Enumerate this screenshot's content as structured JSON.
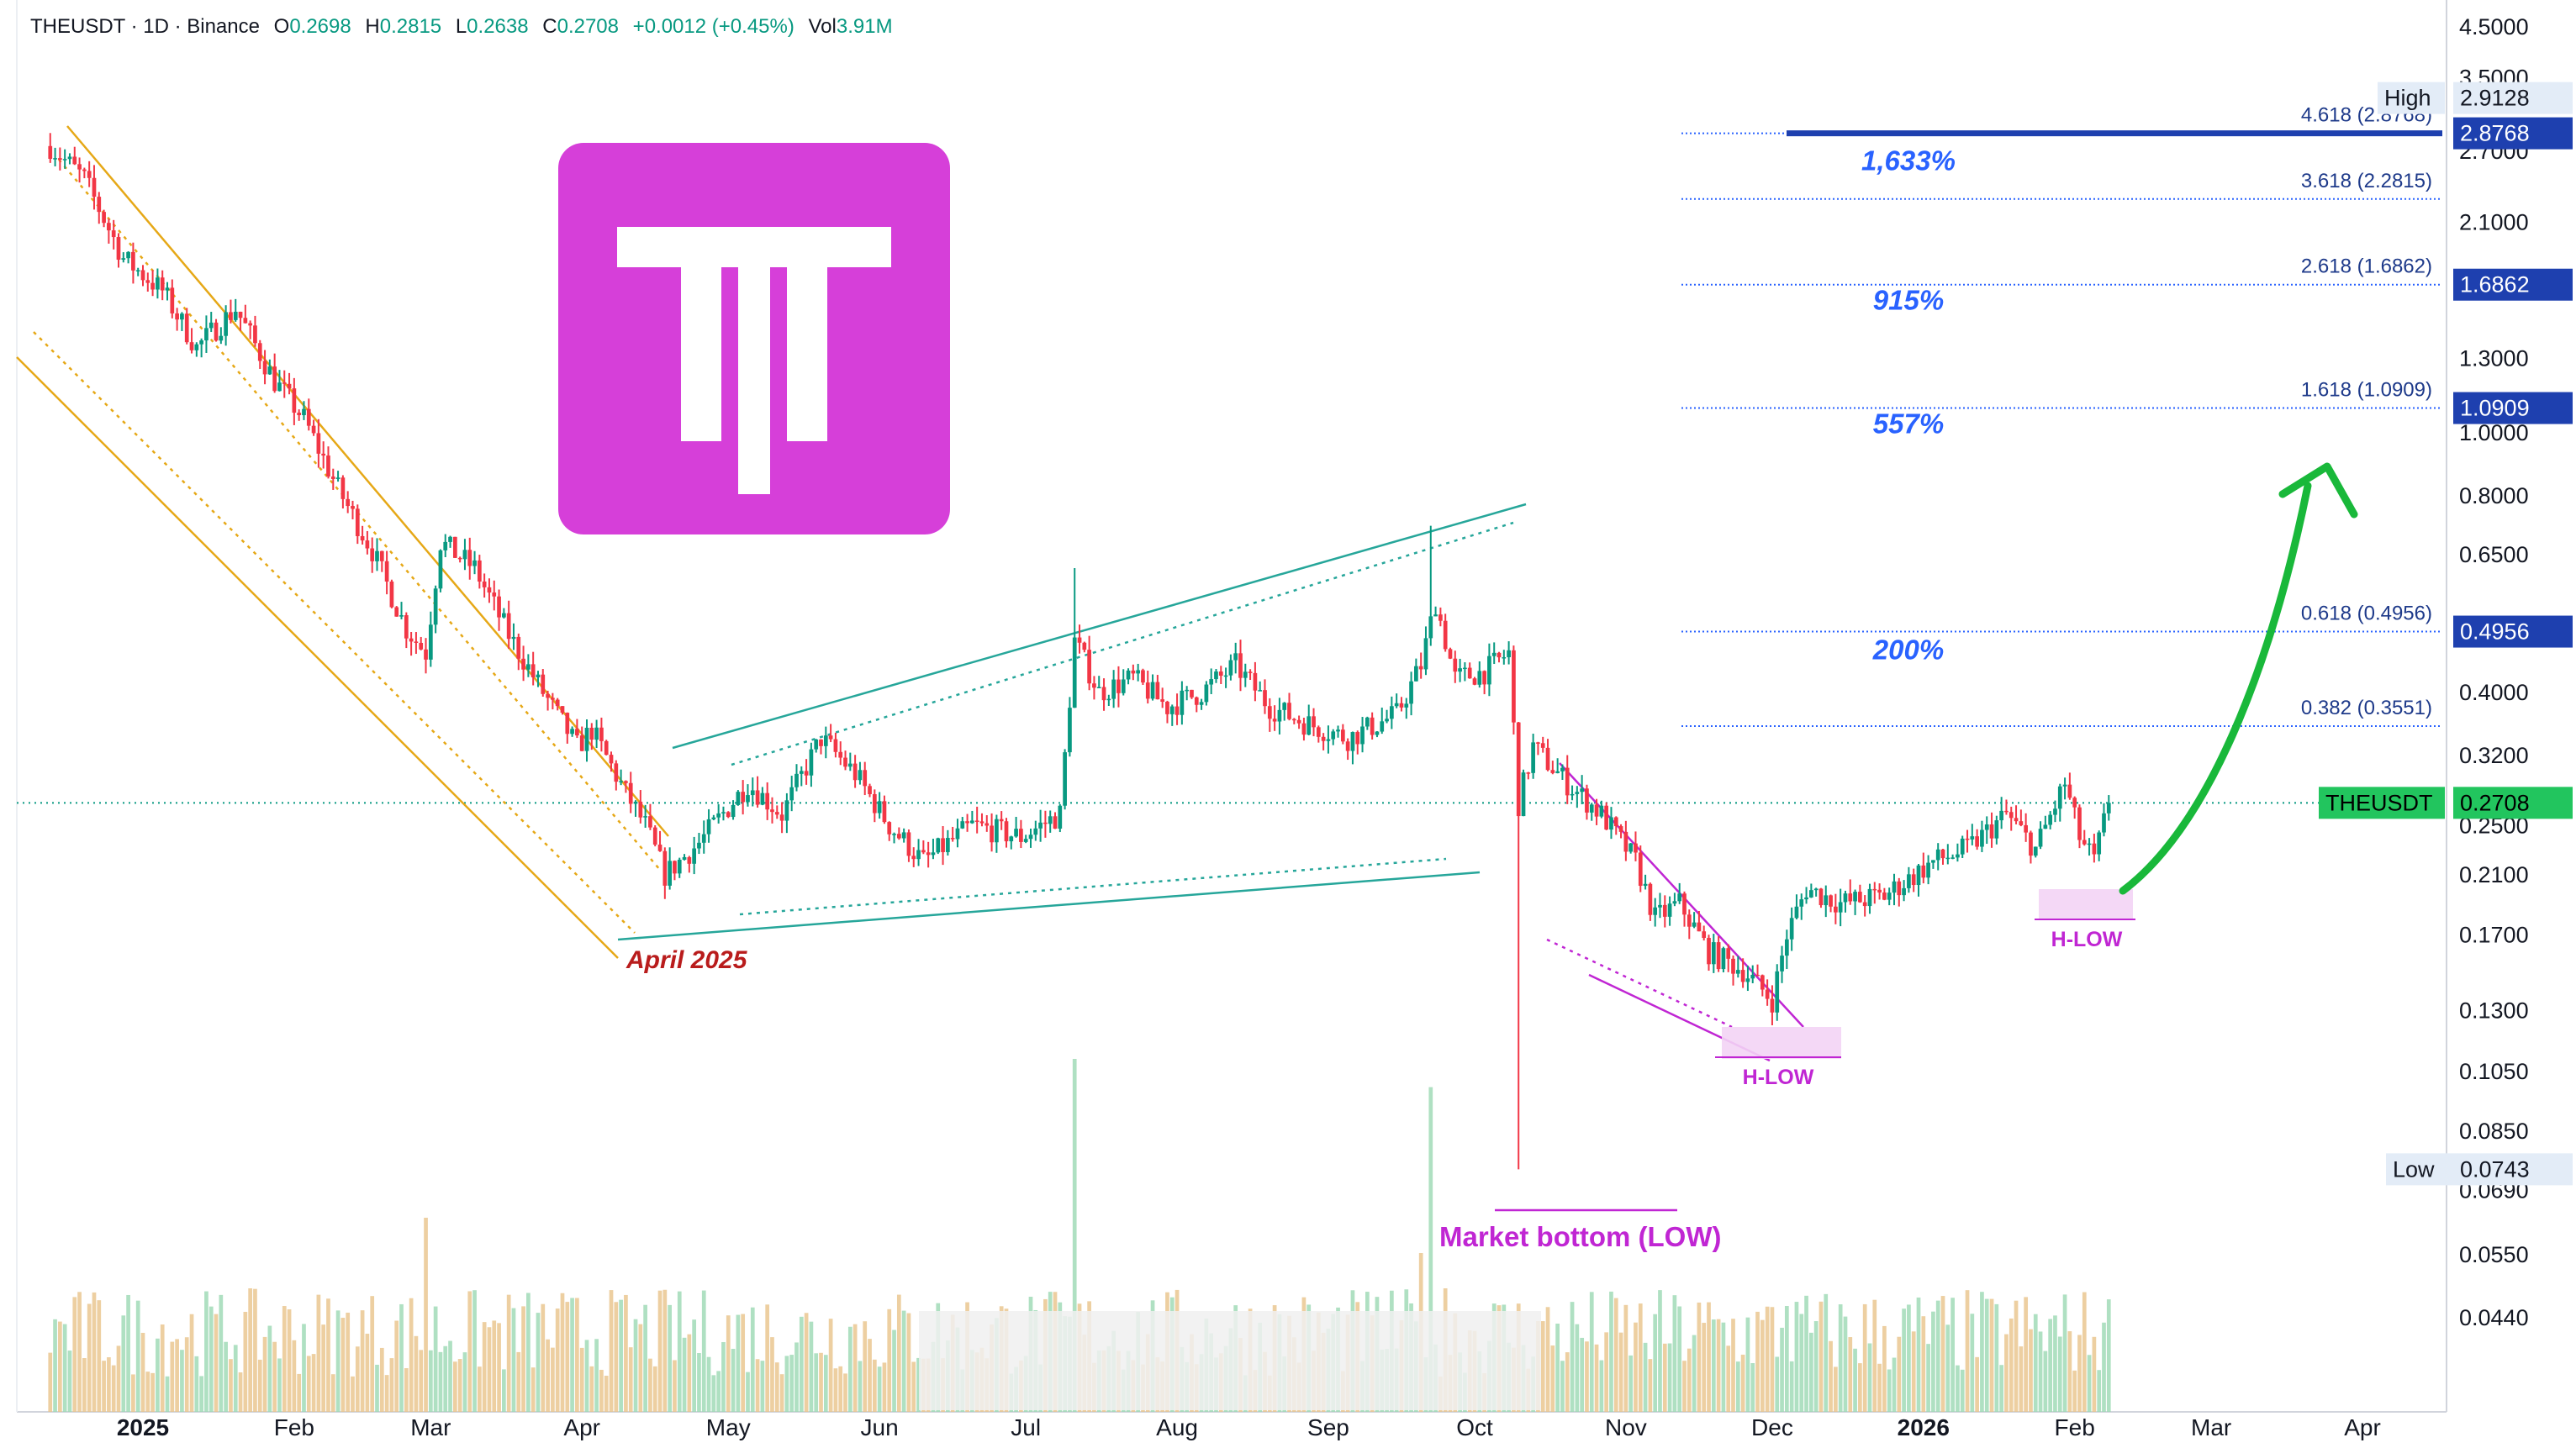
{
  "header": {
    "symbol": "THEUSDT · 1D · Binance",
    "o_label": "O",
    "o_value": "0.2698",
    "h_label": "H",
    "h_value": "0.2815",
    "l_label": "L",
    "l_value": "0.2638",
    "c_label": "C",
    "c_value": "0.2708",
    "change": "+0.0012 (+0.45%)",
    "vol_label": "Vol",
    "vol_value": "3.91M"
  },
  "colors": {
    "up": "#089981",
    "down": "#f23645",
    "fib": "#2962ff",
    "fib_text": "#1e3a8a",
    "channel_gold": "#e6a817",
    "wedge_teal": "#26a69a",
    "magenta": "#c026d3",
    "arrow_green": "#19b83a",
    "price_badge": "#22c55e",
    "annotation_red": "#b91c1c",
    "logo_bg": "#d63fd9"
  },
  "logo": {
    "icon": "the-token-logo-icon"
  },
  "chart_data": {
    "type": "candlestick",
    "symbol": "THEUSDT",
    "interval": "1D",
    "exchange": "Binance",
    "y_scale": "log",
    "ylim": [
      0.04,
      4.6
    ],
    "y_ticks": [
      "4.5000",
      "3.5000",
      "2.7000",
      "2.1000",
      "1.6862",
      "1.3000",
      "1.0000",
      "0.8000",
      "0.6500",
      "0.4000",
      "0.3200",
      "0.2500",
      "0.2100",
      "0.1700",
      "0.1300",
      "0.1050",
      "0.0850",
      "0.0690",
      "0.0550",
      "0.0440"
    ],
    "y_tick_values": [
      4.5,
      3.5,
      2.7,
      2.1,
      1.6862,
      1.3,
      1.0,
      0.8,
      0.65,
      0.4,
      0.32,
      0.25,
      0.21,
      0.17,
      0.13,
      0.105,
      0.085,
      0.069,
      0.055,
      0.044
    ],
    "x_labels": [
      {
        "label": "2025",
        "date": "2025-01-01",
        "bold": true
      },
      {
        "label": "Feb",
        "date": "2025-02-01"
      },
      {
        "label": "Mar",
        "date": "2025-03-01"
      },
      {
        "label": "Apr",
        "date": "2025-04-01"
      },
      {
        "label": "May",
        "date": "2025-05-01"
      },
      {
        "label": "Jun",
        "date": "2025-06-01"
      },
      {
        "label": "Jul",
        "date": "2025-07-01"
      },
      {
        "label": "Aug",
        "date": "2025-08-01"
      },
      {
        "label": "Sep",
        "date": "2025-09-01"
      },
      {
        "label": "Oct",
        "date": "2025-10-01"
      },
      {
        "label": "Nov",
        "date": "2025-11-01"
      },
      {
        "label": "Dec",
        "date": "2025-12-01"
      },
      {
        "label": "2026",
        "date": "2026-01-01",
        "bold": true
      },
      {
        "label": "Feb",
        "date": "2026-02-01"
      },
      {
        "label": "Mar",
        "date": "2026-03-01"
      },
      {
        "label": "Apr",
        "date": "2026-04-01"
      }
    ],
    "x_range": [
      "2024-12-13",
      "2026-04-30"
    ],
    "last_date": "2026-02-08",
    "close_path": [
      {
        "date": "2024-12-13",
        "close": 2.75
      },
      {
        "date": "2024-12-20",
        "close": 2.45
      },
      {
        "date": "2024-12-28",
        "close": 1.85
      },
      {
        "date": "2025-01-05",
        "close": 1.65
      },
      {
        "date": "2025-01-12",
        "close": 1.35
      },
      {
        "date": "2025-01-20",
        "close": 1.55
      },
      {
        "date": "2025-01-28",
        "close": 1.2
      },
      {
        "date": "2025-02-03",
        "close": 1.05
      },
      {
        "date": "2025-02-10",
        "close": 0.82
      },
      {
        "date": "2025-02-17",
        "close": 0.66
      },
      {
        "date": "2025-02-24",
        "close": 0.5
      },
      {
        "date": "2025-02-28",
        "close": 0.46
      },
      {
        "date": "2025-03-03",
        "close": 0.68
      },
      {
        "date": "2025-03-10",
        "close": 0.62
      },
      {
        "date": "2025-03-17",
        "close": 0.49
      },
      {
        "date": "2025-03-24",
        "close": 0.4
      },
      {
        "date": "2025-03-31",
        "close": 0.33
      },
      {
        "date": "2025-04-03",
        "close": 0.35
      },
      {
        "date": "2025-04-10",
        "close": 0.28
      },
      {
        "date": "2025-04-14",
        "close": 0.25
      },
      {
        "date": "2025-04-18",
        "close": 0.21
      },
      {
        "date": "2025-04-25",
        "close": 0.235
      },
      {
        "date": "2025-05-05",
        "close": 0.29
      },
      {
        "date": "2025-05-12",
        "close": 0.26
      },
      {
        "date": "2025-05-20",
        "close": 0.34
      },
      {
        "date": "2025-05-27",
        "close": 0.3
      },
      {
        "date": "2025-06-03",
        "close": 0.25
      },
      {
        "date": "2025-06-10",
        "close": 0.22
      },
      {
        "date": "2025-06-20",
        "close": 0.25
      },
      {
        "date": "2025-06-30",
        "close": 0.24
      },
      {
        "date": "2025-07-08",
        "close": 0.26
      },
      {
        "date": "2025-07-11",
        "close": 0.48
      },
      {
        "date": "2025-07-16",
        "close": 0.4
      },
      {
        "date": "2025-07-23",
        "close": 0.42
      },
      {
        "date": "2025-07-30",
        "close": 0.38
      },
      {
        "date": "2025-08-06",
        "close": 0.4
      },
      {
        "date": "2025-08-13",
        "close": 0.44
      },
      {
        "date": "2025-08-20",
        "close": 0.38
      },
      {
        "date": "2025-08-27",
        "close": 0.36
      },
      {
        "date": "2025-09-05",
        "close": 0.34
      },
      {
        "date": "2025-09-15",
        "close": 0.37
      },
      {
        "date": "2025-09-20",
        "close": 0.44
      },
      {
        "date": "2025-09-23",
        "close": 0.55
      },
      {
        "date": "2025-09-27",
        "close": 0.42
      },
      {
        "date": "2025-10-03",
        "close": 0.43
      },
      {
        "date": "2025-10-08",
        "close": 0.46
      },
      {
        "date": "2025-10-10",
        "close": 0.27
      },
      {
        "date": "2025-10-13",
        "close": 0.33
      },
      {
        "date": "2025-10-20",
        "close": 0.29
      },
      {
        "date": "2025-10-27",
        "close": 0.26
      },
      {
        "date": "2025-11-03",
        "close": 0.22
      },
      {
        "date": "2025-11-07",
        "close": 0.18
      },
      {
        "date": "2025-11-12",
        "close": 0.19
      },
      {
        "date": "2025-11-18",
        "close": 0.16
      },
      {
        "date": "2025-11-25",
        "close": 0.15
      },
      {
        "date": "2025-12-01",
        "close": 0.135
      },
      {
        "date": "2025-12-04",
        "close": 0.17
      },
      {
        "date": "2025-12-08",
        "close": 0.2
      },
      {
        "date": "2025-12-15",
        "close": 0.19
      },
      {
        "date": "2025-12-24",
        "close": 0.195
      },
      {
        "date": "2026-01-03",
        "close": 0.22
      },
      {
        "date": "2026-01-10",
        "close": 0.23
      },
      {
        "date": "2026-01-18",
        "close": 0.26
      },
      {
        "date": "2026-01-24",
        "close": 0.23
      },
      {
        "date": "2026-01-30",
        "close": 0.29
      },
      {
        "date": "2026-02-02",
        "close": 0.24
      },
      {
        "date": "2026-02-05",
        "close": 0.22
      },
      {
        "date": "2026-02-08",
        "close": 0.2708
      }
    ],
    "spikes": [
      {
        "date": "2025-07-11",
        "high": 0.62
      },
      {
        "date": "2025-09-22",
        "high": 0.72
      },
      {
        "date": "2025-10-10",
        "low": 0.0743
      }
    ],
    "volume_spikes": [
      {
        "date": "2025-02-28",
        "rel": 0.55
      },
      {
        "date": "2025-07-11",
        "rel": 1.0
      },
      {
        "date": "2025-09-20",
        "rel": 0.45
      },
      {
        "date": "2025-09-22",
        "rel": 0.92
      },
      {
        "date": "2025-09-25",
        "rel": 0.35
      },
      {
        "date": "2025-12-04",
        "rel": 0.3
      }
    ],
    "fib_levels": [
      {
        "ratio": "4.618",
        "value": 2.8768,
        "label": "4.618 (2.8768)",
        "pct": "1,633%"
      },
      {
        "ratio": "3.618",
        "value": 2.2815,
        "label": "3.618 (2.2815)"
      },
      {
        "ratio": "2.618",
        "value": 1.6862,
        "label": "2.618 (1.6862)",
        "pct": "915%"
      },
      {
        "ratio": "1.618",
        "value": 1.0909,
        "label": "1.618 (1.0909)",
        "pct": "557%"
      },
      {
        "ratio": "0.618",
        "value": 0.4956,
        "label": "0.618 (0.4956)",
        "pct": "200%"
      },
      {
        "ratio": "0.382",
        "value": 0.3551,
        "label": "0.382 (0.3551)"
      }
    ],
    "price_badges": [
      {
        "value": 2.8768,
        "text": "2.8768",
        "kind": "fib"
      },
      {
        "value": 1.6862,
        "text": "1.6862",
        "kind": "fib"
      },
      {
        "value": 1.0909,
        "text": "1.0909",
        "kind": "fib"
      },
      {
        "value": 0.4956,
        "text": "0.4956",
        "kind": "fib"
      },
      {
        "value": 0.2708,
        "text": "0.2708",
        "kind": "last",
        "name": "THEUSDT"
      },
      {
        "value": 2.9128,
        "text": "2.9128",
        "kind": "high",
        "name": "High"
      },
      {
        "value": 0.0743,
        "text": "0.0743",
        "kind": "low",
        "name": "Low"
      }
    ],
    "last_price": 0.2708,
    "annotations": {
      "april": "April 2025",
      "market_bottom": "Market bottom (LOW)",
      "h_low_1": "H-LOW",
      "h_low_2": "H-LOW"
    }
  }
}
